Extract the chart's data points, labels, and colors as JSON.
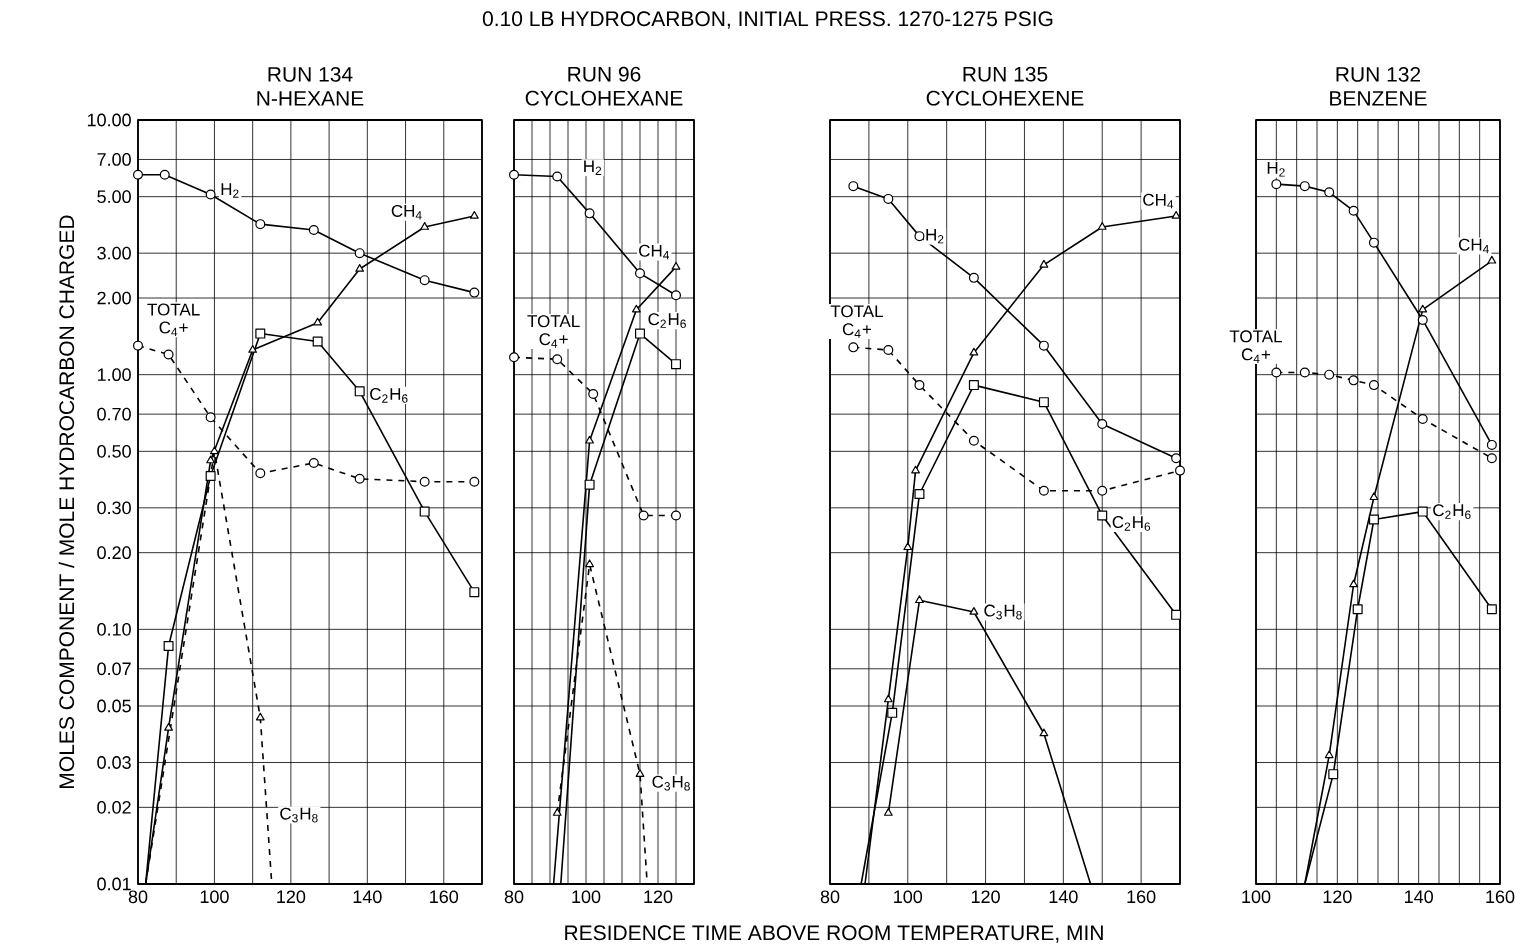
{
  "chart_data": [
    {
      "type": "line",
      "title": "RUN 134",
      "subtitle": "N-HEXANE",
      "ylabel": "MOLES COMPONENT / MOLE HYDROCARBON CHARGED",
      "xlabel": "RESIDENCE TIME ABOVE ROOM TEMPERATURE, MIN",
      "annotations": [
        "0.10 LB HYDROCARBON, INITIAL PRESS. 1270-1275 PSIG"
      ],
      "log": "y",
      "grid": true,
      "xlim": [
        80,
        170
      ],
      "xticks": [
        80,
        {
          "value": 90,
          "label": null
        },
        100,
        {
          "value": 110,
          "label": null
        },
        120,
        {
          "value": 130,
          "label": null
        },
        140,
        {
          "value": 150,
          "label": null
        },
        160,
        {
          "value": 170,
          "label": null
        }
      ],
      "ylim": [
        0.01,
        10
      ],
      "yticks": [
        {
          "value": 0.01,
          "label": "0.01"
        },
        {
          "value": 0.02,
          "label": "0.02"
        },
        {
          "value": 0.03,
          "label": "0.03"
        },
        {
          "value": 0.05,
          "label": "0.05"
        },
        {
          "value": 0.07,
          "label": "0.07"
        },
        {
          "value": 0.1,
          "label": "0.10"
        },
        {
          "value": 0.2,
          "label": "0.20"
        },
        {
          "value": 0.3,
          "label": "0.30"
        },
        {
          "value": 0.5,
          "label": "0.50"
        },
        {
          "value": 0.7,
          "label": "0.70"
        },
        {
          "value": 1,
          "label": "1.00"
        },
        {
          "value": 2,
          "label": "2.00"
        },
        {
          "value": 3,
          "label": "3.00"
        },
        {
          "value": 5,
          "label": "5.00"
        },
        {
          "value": 7,
          "label": "7.00"
        },
        {
          "value": 10,
          "label": "10.00"
        }
      ],
      "series": [
        {
          "name": "H$_{2}$",
          "color": "#000000",
          "marker": "circle",
          "line_style": "solid",
          "x": [
            80,
            87,
            99,
            112,
            126,
            138,
            155,
            168
          ],
          "values": [
            6.1,
            6.1,
            5.1,
            3.9,
            3.7,
            3.0,
            2.35,
            2.1
          ]
        },
        {
          "name": "CH$_{4}$",
          "color": "#000000",
          "marker": "triangle",
          "line_style": "solid",
          "x": [
            82,
            88,
            99,
            110,
            127,
            138,
            155,
            168
          ],
          "values": [
            0.01,
            0.041,
            0.46,
            1.25,
            1.6,
            2.6,
            3.8,
            4.2
          ]
        },
        {
          "name": "C$_{2}$H$_{6}$",
          "color": "#000000",
          "marker": "square",
          "line_style": "solid",
          "x": [
            82,
            88,
            99,
            112,
            127,
            138,
            155,
            168
          ],
          "values": [
            0.01,
            0.086,
            0.4,
            1.45,
            1.35,
            0.86,
            0.29,
            0.14
          ]
        },
        {
          "name": "C$_{3}$H$_{8}$",
          "color": "#000000",
          "marker": "triangle",
          "line_style": "dashed",
          "x": [
            82,
            100,
            112,
            115
          ],
          "values": [
            0.01,
            0.5,
            0.045,
            0.01
          ]
        },
        {
          "name": "TOTAL C$_{4}$+",
          "color": "#000000",
          "marker": "circle",
          "line_style": "dashed",
          "x": [
            80,
            88,
            99,
            112,
            126,
            138,
            155,
            168
          ],
          "values": [
            1.3,
            1.2,
            0.68,
            0.41,
            0.45,
            0.39,
            0.38,
            0.38
          ]
        }
      ]
    },
    {
      "type": "line",
      "title": "RUN 96",
      "subtitle": "CYCLOHEXANE",
      "log": "y",
      "grid": true,
      "tick_labels": "x",
      "xlim": [
        80,
        130
      ],
      "xticks": [
        80,
        {
          "value": 85,
          "label": null
        },
        {
          "value": 90,
          "label": null
        },
        {
          "value": 95,
          "label": null
        },
        100,
        {
          "value": 105,
          "label": null
        },
        {
          "value": 110,
          "label": null
        },
        {
          "value": 115,
          "label": null
        },
        120,
        {
          "value": 125,
          "label": null
        },
        {
          "value": 130,
          "label": null
        }
      ],
      "ylim": [
        0.01,
        10
      ],
      "yticks": [
        0.01,
        0.02,
        0.03,
        0.05,
        0.07,
        0.1,
        0.2,
        0.3,
        0.5,
        0.7,
        1,
        2,
        3,
        5,
        7,
        10
      ],
      "series": [
        {
          "name": "H$_{2}$",
          "color": "#000000",
          "marker": "circle",
          "line_style": "solid",
          "x": [
            80,
            92,
            101,
            115,
            125
          ],
          "values": [
            6.1,
            6.0,
            4.3,
            2.5,
            2.05
          ]
        },
        {
          "name": "CH$_{4}$",
          "color": "#000000",
          "marker": "triangle",
          "line_style": "solid",
          "x": [
            91,
            101,
            114,
            125
          ],
          "values": [
            0.01,
            0.55,
            1.8,
            2.65
          ]
        },
        {
          "name": "C$_{2}$H$_{6}$",
          "color": "#000000",
          "marker": "square",
          "line_style": "solid",
          "x": [
            93,
            101,
            115,
            125
          ],
          "values": [
            0.01,
            0.37,
            1.45,
            1.1
          ]
        },
        {
          "name": "C$_{3}$H$_{8}$",
          "color": "#000000",
          "marker": "triangle",
          "line_style": "dashed",
          "x": [
            92,
            101,
            115,
            117
          ],
          "values": [
            0.019,
            0.18,
            0.027,
            0.01
          ]
        },
        {
          "name": "TOTAL C$_{4}$+",
          "color": "#000000",
          "marker": "circle",
          "line_style": "dashed",
          "x": [
            80,
            92,
            102,
            116,
            125
          ],
          "values": [
            1.17,
            1.15,
            0.84,
            0.28,
            0.28
          ]
        }
      ]
    },
    {
      "type": "line",
      "title": "RUN 135",
      "subtitle": "CYCLOHEXENE",
      "log": "y",
      "grid": true,
      "tick_labels": "x",
      "xlim": [
        80,
        170
      ],
      "xticks": [
        80,
        {
          "value": 90,
          "label": null
        },
        100,
        {
          "value": 110,
          "label": null
        },
        120,
        {
          "value": 130,
          "label": null
        },
        140,
        {
          "value": 150,
          "label": null
        },
        160,
        {
          "value": 170,
          "label": null
        }
      ],
      "ylim": [
        0.01,
        10
      ],
      "yticks": [
        0.01,
        0.02,
        0.03,
        0.05,
        0.07,
        0.1,
        0.2,
        0.3,
        0.5,
        0.7,
        1,
        2,
        3,
        5,
        7,
        10
      ],
      "series": [
        {
          "name": "H$_{2}$",
          "color": "#000000",
          "marker": "circle",
          "line_style": "solid",
          "x": [
            86,
            95,
            103,
            117,
            135,
            150,
            169
          ],
          "values": [
            5.5,
            4.9,
            3.5,
            2.4,
            1.3,
            0.64,
            0.47
          ]
        },
        {
          "name": "CH$_{4}$",
          "color": "#000000",
          "marker": "triangle",
          "line_style": "solid",
          "x": [
            89,
            95,
            100,
            102,
            117,
            135,
            150,
            169
          ],
          "values": [
            0.01,
            0.053,
            0.21,
            0.42,
            1.22,
            2.7,
            3.8,
            4.2
          ]
        },
        {
          "name": "C$_{2}$H$_{6}$",
          "color": "#000000",
          "marker": "square",
          "line_style": "solid",
          "x": [
            88,
            96,
            103,
            117,
            135,
            150,
            169
          ],
          "values": [
            0.01,
            0.047,
            0.34,
            0.91,
            0.78,
            0.28,
            0.114
          ]
        },
        {
          "name": "C$_{3}$H$_{8}$",
          "color": "#000000",
          "marker": "triangle",
          "line_style": "solid",
          "x": [
            95,
            103,
            117,
            135,
            147
          ],
          "values": [
            0.019,
            0.13,
            0.117,
            0.039,
            0.01
          ]
        },
        {
          "name": "TOTAL C$_{4}$+",
          "color": "#000000",
          "marker": "circle",
          "line_style": "dashed",
          "x": [
            86,
            95,
            103,
            117,
            135,
            150,
            170
          ],
          "values": [
            1.28,
            1.25,
            0.91,
            0.55,
            0.35,
            0.35,
            0.42
          ]
        }
      ]
    },
    {
      "type": "line",
      "title": "RUN 132",
      "subtitle": "BENZENE",
      "log": "y",
      "grid": true,
      "tick_labels": "x",
      "xlim": [
        100,
        160
      ],
      "xticks": [
        100,
        {
          "value": 105,
          "label": null
        },
        {
          "value": 110,
          "label": null
        },
        {
          "value": 115,
          "label": null
        },
        120,
        {
          "value": 125,
          "label": null
        },
        {
          "value": 130,
          "label": null
        },
        {
          "value": 135,
          "label": null
        },
        140,
        {
          "value": 145,
          "label": null
        },
        {
          "value": 150,
          "label": null
        },
        {
          "value": 155,
          "label": null
        },
        160
      ],
      "ylim": [
        0.01,
        10
      ],
      "yticks": [
        0.01,
        0.02,
        0.03,
        0.05,
        0.07,
        0.1,
        0.2,
        0.3,
        0.5,
        0.7,
        1,
        2,
        3,
        5,
        7,
        10
      ],
      "series": [
        {
          "name": "H$_{2}$",
          "color": "#000000",
          "marker": "circle",
          "line_style": "solid",
          "x": [
            105,
            112,
            118,
            124,
            129,
            141,
            158
          ],
          "values": [
            5.6,
            5.5,
            5.2,
            4.4,
            3.3,
            1.64,
            0.53
          ]
        },
        {
          "name": "CH$_{4}$",
          "color": "#000000",
          "marker": "triangle",
          "line_style": "solid",
          "x": [
            112,
            118,
            124,
            129,
            141,
            158
          ],
          "values": [
            0.01,
            0.032,
            0.15,
            0.33,
            1.8,
            2.8
          ]
        },
        {
          "name": "C$_{2}$H$_{6}$",
          "color": "#000000",
          "marker": "square",
          "line_style": "solid",
          "x": [
            112,
            119,
            125,
            129,
            141,
            158
          ],
          "values": [
            0.01,
            0.027,
            0.12,
            0.27,
            0.29,
            0.12
          ]
        },
        {
          "name": "TOTAL C$_{4}$+",
          "color": "#000000",
          "marker": "circle",
          "line_style": "dashed",
          "x": [
            105,
            112,
            118,
            124,
            129,
            141,
            158
          ],
          "values": [
            1.02,
            1.02,
            1.0,
            0.95,
            0.91,
            0.67,
            0.47
          ]
        }
      ]
    }
  ]
}
